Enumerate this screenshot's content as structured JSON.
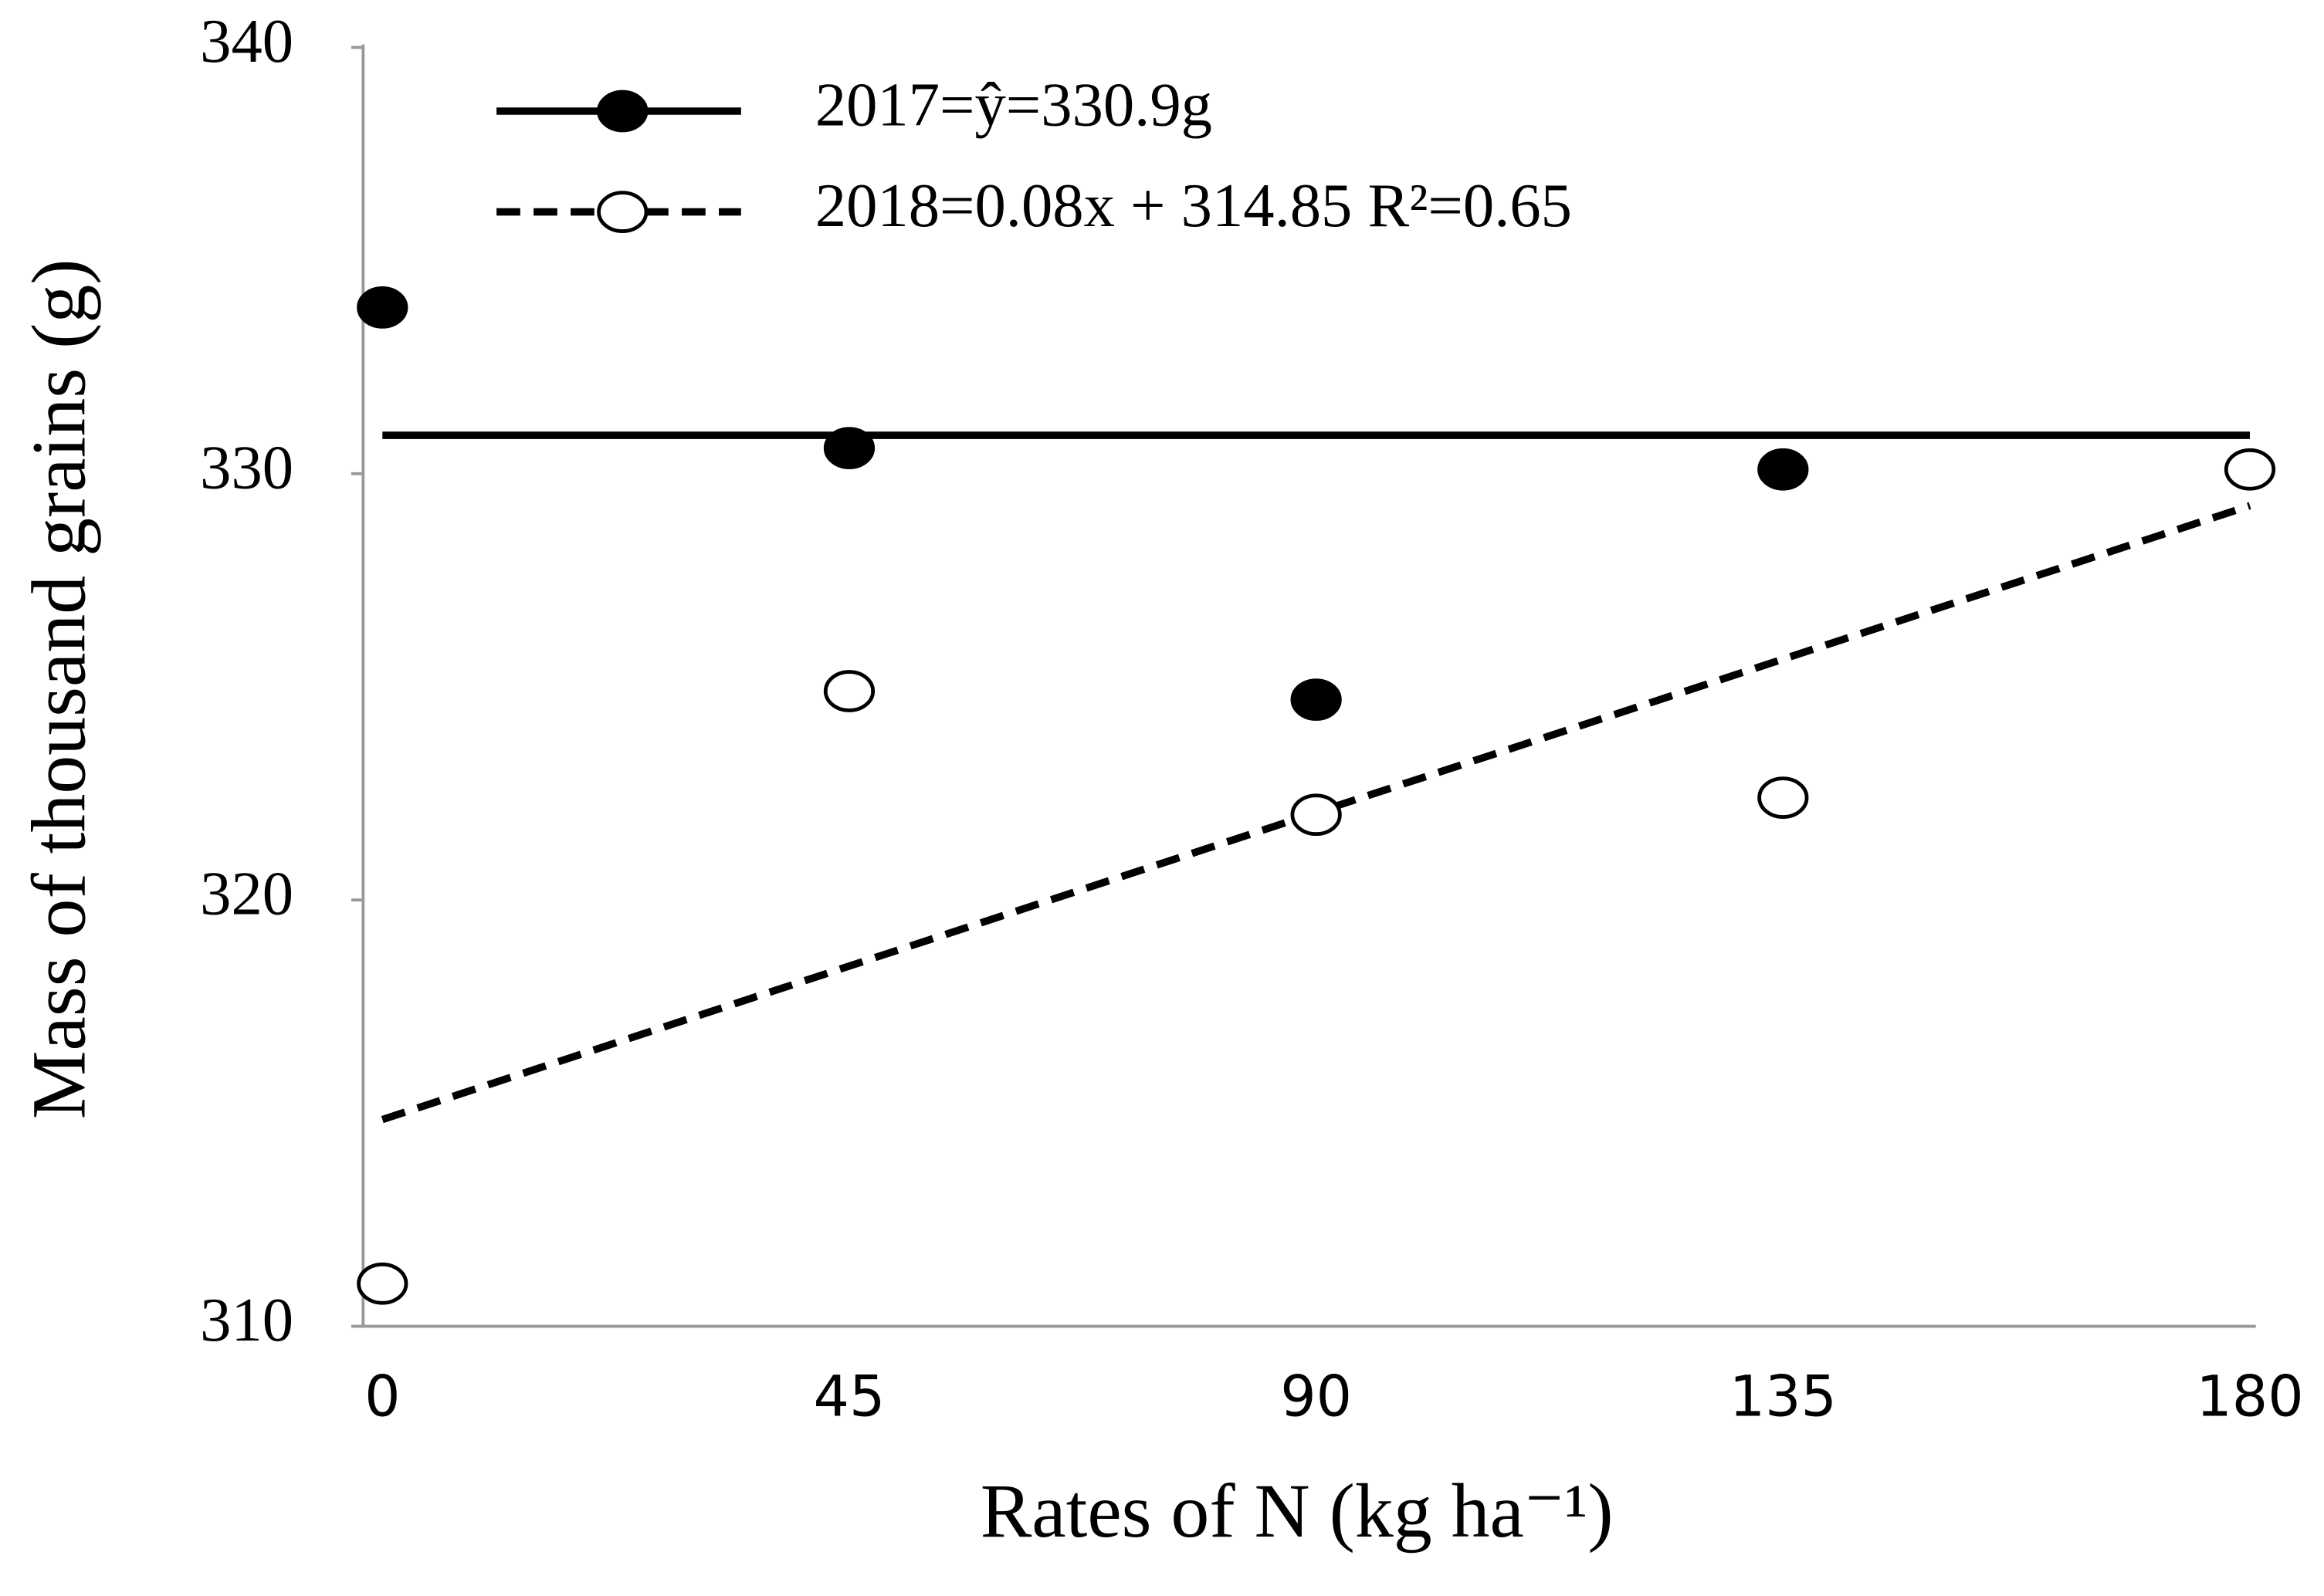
{
  "chart_data": {
    "type": "scatter",
    "x": [
      0,
      45,
      90,
      135,
      180
    ],
    "xlabel": "Rates of N (kg ha⁻¹)",
    "ylabel": "Mass of thousand grains (g)",
    "xlim": [
      0,
      180
    ],
    "ylim": [
      310,
      340
    ],
    "xticks": [
      0,
      45,
      90,
      135,
      180
    ],
    "yticks": [
      310,
      320,
      330,
      340
    ],
    "series": [
      {
        "name": "2017=ŷ=330.9g",
        "color": "#000000",
        "marker": "filled",
        "line": "solid",
        "values": [
          333.9,
          330.6,
          324.7,
          330.1,
          null
        ],
        "fit_x": [
          0,
          180
        ],
        "fit_values": [
          330.9,
          330.9
        ]
      },
      {
        "name": "2018=0.08x + 314.85 R²=0.65",
        "color": "#000000",
        "marker": "open",
        "line": "dashed",
        "values": [
          311.0,
          324.9,
          322.0,
          322.4,
          330.1
        ],
        "fit_x": [
          0,
          180
        ],
        "fit_values": [
          314.85,
          329.25
        ]
      }
    ]
  }
}
